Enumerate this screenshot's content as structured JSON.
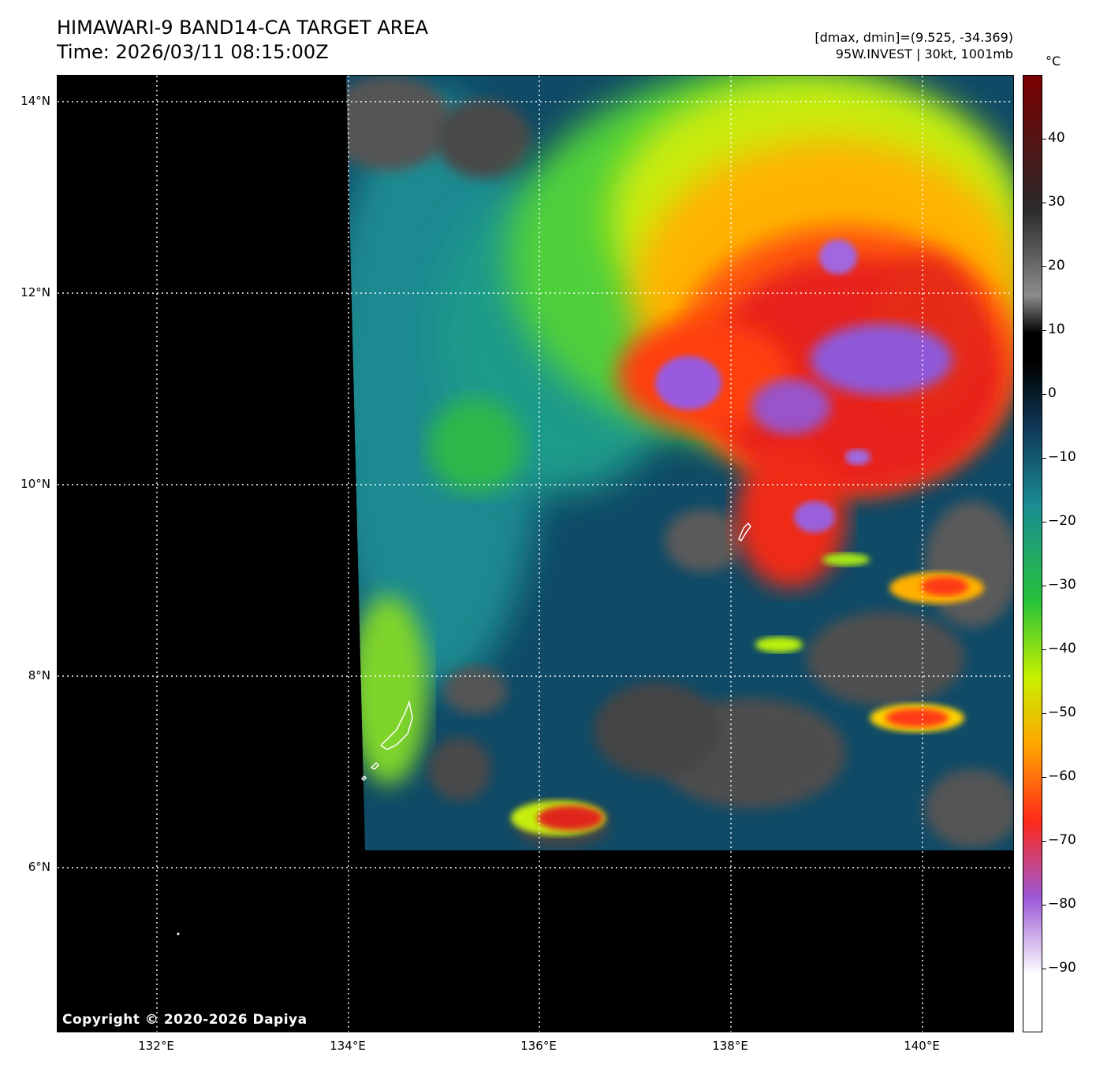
{
  "header": {
    "title": "HIMAWARI-9 BAND14-CA TARGET AREA",
    "time": "Time: 2026/03/11 08:15:00Z",
    "dminmax": "[dmax, dmin]=(9.525, -34.369)",
    "storm": "95W.INVEST | 30kt, 1001mb"
  },
  "axes": {
    "lat_labels": [
      "14°N",
      "12°N",
      "10°N",
      "8°N",
      "6°N"
    ],
    "lon_labels": [
      "132°E",
      "134°E",
      "136°E",
      "138°E",
      "140°E"
    ]
  },
  "colorbar": {
    "unit": "°C",
    "ticks": [
      "40",
      "30",
      "20",
      "10",
      "0",
      "−10",
      "−20",
      "−30",
      "−40",
      "−50",
      "−60",
      "−70",
      "−80",
      "−90"
    ],
    "range": [
      -100,
      50
    ],
    "colors": [
      "#ffffff",
      "#9b59d6",
      "#ff2a1a",
      "#ffa500",
      "#c8f000",
      "#27c23a",
      "#1a8d93",
      "#0f3a58",
      "#000000",
      "#8c8c8c",
      "#2a2a2a",
      "#7a0000"
    ]
  },
  "copyright": "Copyright © 2020-2026 Dapiya"
}
